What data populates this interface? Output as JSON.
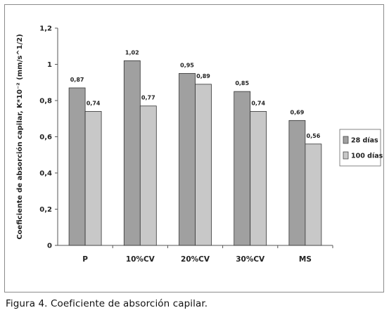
{
  "caption": "Figura 4. Coeficiente de absorción capilar.",
  "chart_data": {
    "type": "bar",
    "categories": [
      "P",
      "10%CV",
      "20%CV",
      "30%CV",
      "MS"
    ],
    "series": [
      {
        "name": "28 días",
        "values": [
          0.87,
          1.02,
          0.95,
          0.85,
          0.69
        ],
        "labels": [
          "0,87",
          "1,02",
          "0,95",
          "0,85",
          "0,69"
        ],
        "color": "#a0a0a0"
      },
      {
        "name": "100 días",
        "values": [
          0.74,
          0.77,
          0.89,
          0.74,
          0.56
        ],
        "labels": [
          "0,74",
          "0,77",
          "0,89",
          "0,74",
          "0,56"
        ],
        "color": "#c8c8c8"
      }
    ],
    "ylabel": "Coeficiente de absorción capilar, K*10⁻² (mm/s^1/2)",
    "yticks": [
      "0",
      "0,2",
      "0,4",
      "0,6",
      "0,8",
      "1",
      "1,2"
    ],
    "ylim": [
      0,
      1.2
    ],
    "grid": false,
    "legend_position": "right"
  }
}
